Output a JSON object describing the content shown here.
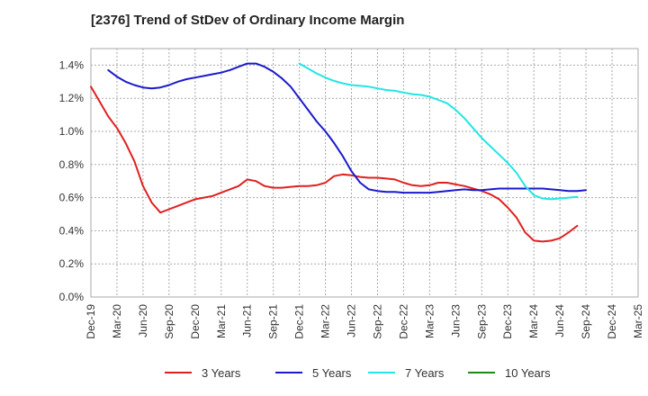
{
  "title": "[2376]  Trend of StDev of Ordinary Income Margin",
  "chart_data": {
    "type": "line",
    "title": "[2376]  Trend of StDev of Ordinary Income Margin",
    "xlabel": "",
    "ylabel": "",
    "ylim": [
      0,
      1.5
    ],
    "yticks": [
      "0.0%",
      "0.2%",
      "0.4%",
      "0.6%",
      "0.8%",
      "1.0%",
      "1.2%",
      "1.4%"
    ],
    "ytick_values": [
      0,
      0.2,
      0.4,
      0.6,
      0.8,
      1.0,
      1.2,
      1.4
    ],
    "xticks": [
      "Dec-19",
      "Mar-20",
      "Jun-20",
      "Sep-20",
      "Dec-20",
      "Mar-21",
      "Jun-21",
      "Sep-21",
      "Dec-21",
      "Mar-22",
      "Jun-22",
      "Sep-22",
      "Dec-22",
      "Mar-23",
      "Jun-23",
      "Sep-23",
      "Dec-23",
      "Mar-24",
      "Jun-24",
      "Sep-24",
      "Dec-24",
      "Mar-25"
    ],
    "grid": true,
    "legend_position": "bottom",
    "series": [
      {
        "name": "3 Years",
        "color": "#e02020",
        "start_index": 0,
        "values": [
          1.27,
          1.18,
          1.09,
          1.02,
          0.93,
          0.82,
          0.67,
          0.57,
          0.51,
          0.53,
          0.55,
          0.57,
          0.59,
          0.6,
          0.61,
          0.63,
          0.65,
          0.67,
          0.71,
          0.7,
          0.67,
          0.66,
          0.66,
          0.665,
          0.67,
          0.67,
          0.675,
          0.69,
          0.73,
          0.74,
          0.735,
          0.725,
          0.72,
          0.72,
          0.715,
          0.71,
          0.69,
          0.675,
          0.67,
          0.675,
          0.69,
          0.69,
          0.68,
          0.67,
          0.655,
          0.64,
          0.62,
          0.59,
          0.54,
          0.48,
          0.39,
          0.34,
          0.335,
          0.34,
          0.355,
          0.39,
          0.43
        ]
      },
      {
        "name": "5 Years",
        "color": "#1a1acc",
        "start_index": 2,
        "values": [
          1.37,
          1.33,
          1.3,
          1.28,
          1.265,
          1.26,
          1.265,
          1.28,
          1.3,
          1.315,
          1.325,
          1.335,
          1.345,
          1.355,
          1.37,
          1.39,
          1.41,
          1.41,
          1.39,
          1.36,
          1.32,
          1.27,
          1.2,
          1.13,
          1.06,
          1.0,
          0.93,
          0.85,
          0.76,
          0.69,
          0.65,
          0.64,
          0.635,
          0.635,
          0.63,
          0.63,
          0.63,
          0.63,
          0.635,
          0.64,
          0.645,
          0.65,
          0.645,
          0.645,
          0.65,
          0.655,
          0.655,
          0.655,
          0.655,
          0.655,
          0.655,
          0.65,
          0.645,
          0.64,
          0.64,
          0.645
        ]
      },
      {
        "name": "7 Years",
        "color": "#22e5e5",
        "start_index": 24,
        "values": [
          1.41,
          1.38,
          1.35,
          1.325,
          1.305,
          1.29,
          1.28,
          1.275,
          1.27,
          1.26,
          1.25,
          1.245,
          1.235,
          1.225,
          1.22,
          1.21,
          1.19,
          1.17,
          1.13,
          1.08,
          1.02,
          0.96,
          0.91,
          0.86,
          0.81,
          0.75,
          0.67,
          0.615,
          0.595,
          0.59,
          0.595,
          0.6,
          0.605
        ]
      },
      {
        "name": "10 Years",
        "color": "#1a8a1a",
        "start_index": 0,
        "values": []
      }
    ]
  }
}
